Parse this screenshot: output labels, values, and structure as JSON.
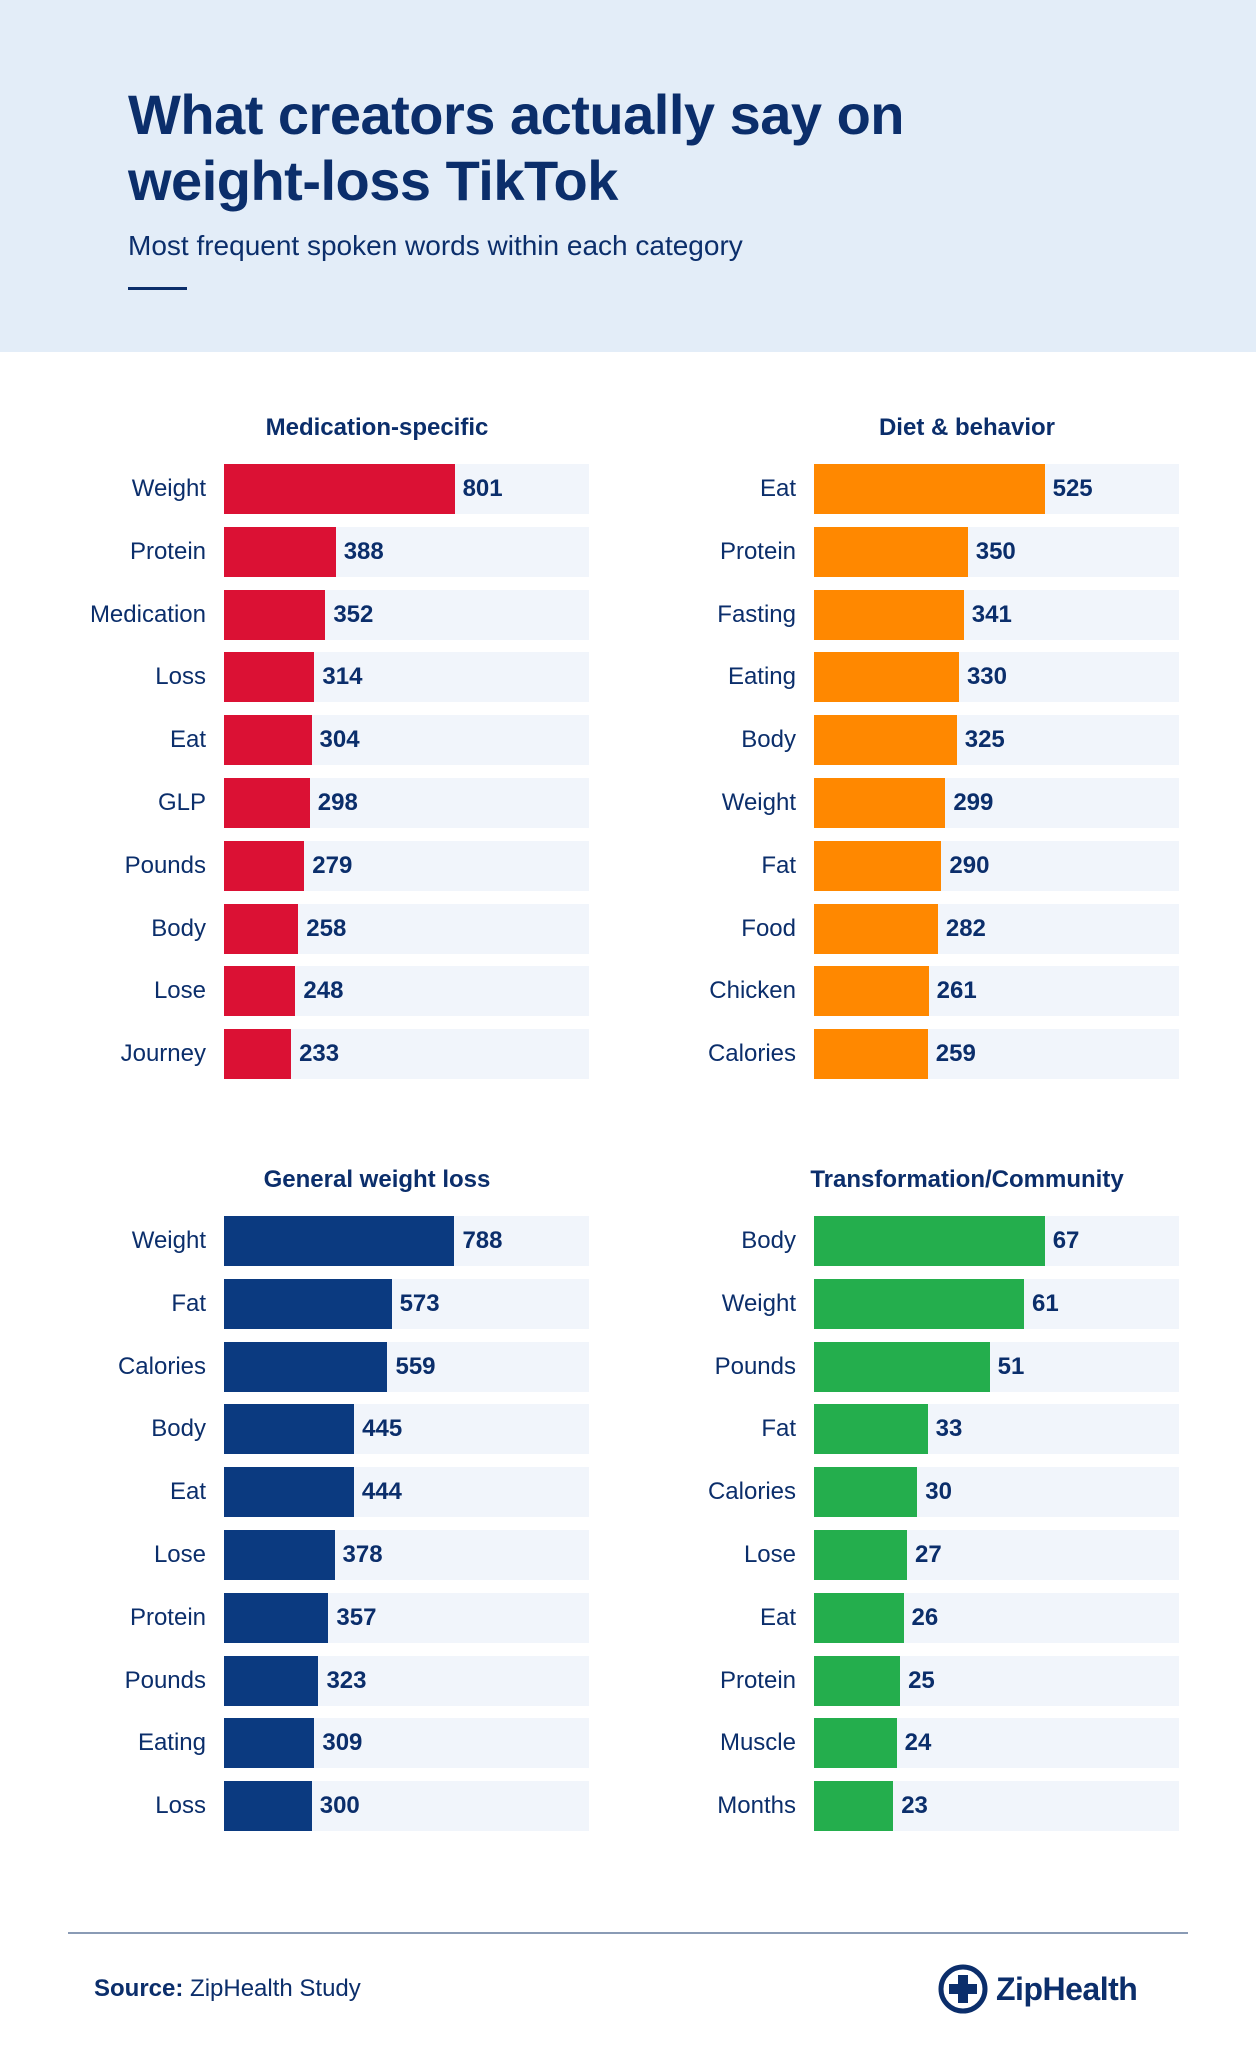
{
  "header": {
    "title_line1": "What creators actually say on",
    "title_line2": "weight-loss TikTok",
    "subtitle": "Most frequent spoken words within each category"
  },
  "colors": {
    "header_bg": "#e3edf8",
    "text": "#0b2e6b",
    "track": "#f1f5fb",
    "medication": "#db1134",
    "diet": "#ff8800",
    "general": "#0b3a80",
    "transformation": "#24ae4d"
  },
  "chart_data": [
    {
      "type": "bar",
      "orientation": "horizontal",
      "title": "Medication-specific",
      "color": "#db1134",
      "categories": [
        "Weight",
        "Protein",
        "Medication",
        "Loss",
        "Eat",
        "GLP",
        "Pounds",
        "Body",
        "Lose",
        "Journey"
      ],
      "values": [
        801,
        388,
        352,
        314,
        304,
        298,
        279,
        258,
        248,
        233
      ],
      "xlim": [
        0,
        1268
      ]
    },
    {
      "type": "bar",
      "orientation": "horizontal",
      "title": "Diet & behavior",
      "color": "#ff8800",
      "categories": [
        "Eat",
        "Protein",
        "Fasting",
        "Eating",
        "Body",
        "Weight",
        "Fat",
        "Food",
        "Chicken",
        "Calories"
      ],
      "values": [
        525,
        350,
        341,
        330,
        325,
        299,
        290,
        282,
        261,
        259
      ],
      "xlim": [
        0,
        831
      ]
    },
    {
      "type": "bar",
      "orientation": "horizontal",
      "title": "General weight loss",
      "color": "#0b3a80",
      "categories": [
        "Weight",
        "Fat",
        "Calories",
        "Body",
        "Eat",
        "Lose",
        "Protein",
        "Pounds",
        "Eating",
        "Loss"
      ],
      "values": [
        788,
        573,
        559,
        445,
        444,
        378,
        357,
        323,
        309,
        300
      ],
      "xlim": [
        0,
        1248
      ]
    },
    {
      "type": "bar",
      "orientation": "horizontal",
      "title": "Transformation/Community",
      "color": "#24ae4d",
      "categories": [
        "Body",
        "Weight",
        "Pounds",
        "Fat",
        "Calories",
        "Lose",
        "Eat",
        "Protein",
        "Muscle",
        "Months"
      ],
      "values": [
        67,
        61,
        51,
        33,
        30,
        27,
        26,
        25,
        24,
        23
      ],
      "xlim": [
        0,
        106
      ]
    }
  ],
  "footer": {
    "source_label": "Source:",
    "source_text": " ZipHealth Study",
    "logo_text": "ZipHealth",
    "logo_icon": "medical-cross-icon"
  }
}
